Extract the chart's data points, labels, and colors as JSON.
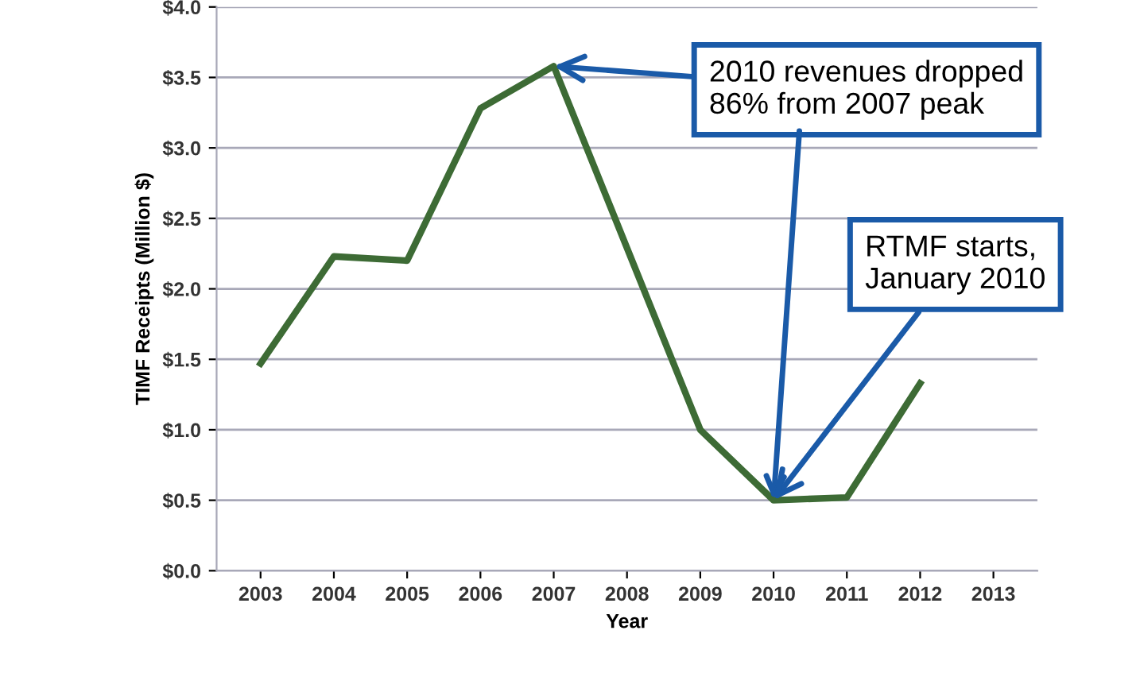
{
  "chart_data": {
    "type": "line",
    "xlabel": "Year",
    "ylabel": "TIMF Receipts (Million $)",
    "categories": [
      "2003",
      "2004",
      "2005",
      "2006",
      "2007",
      "2008",
      "2009",
      "2010",
      "2011",
      "2012",
      "2013"
    ],
    "series": [
      {
        "color": "#3d6b35",
        "values": [
          1.47,
          2.23,
          2.2,
          3.28,
          3.58,
          2.29,
          1.0,
          0.5,
          0.52,
          1.33,
          null
        ]
      }
    ],
    "ylim": [
      0,
      4
    ],
    "yticks": [
      {
        "value": 0,
        "label": "$0.0"
      },
      {
        "value": 0.5,
        "label": "$0.5"
      },
      {
        "value": 1,
        "label": "$1.0"
      },
      {
        "value": 1.5,
        "label": "$1.5"
      },
      {
        "value": 2,
        "label": "$2.0"
      },
      {
        "value": 2.5,
        "label": "$2.5"
      },
      {
        "value": 3,
        "label": "$3.0"
      },
      {
        "value": 3.5,
        "label": "$3.5"
      },
      {
        "value": 4,
        "label": "$4.0"
      }
    ],
    "grid": "y",
    "marker": "none",
    "line_style": "solid",
    "annotations": [
      {
        "text": "2010 revenues dropped\n86% from 2007 peak",
        "x": "2007",
        "y": 3.58
      },
      {
        "text": "RTMF starts,\nJanuary 2010",
        "x": "2010",
        "y": 0.5
      }
    ]
  }
}
